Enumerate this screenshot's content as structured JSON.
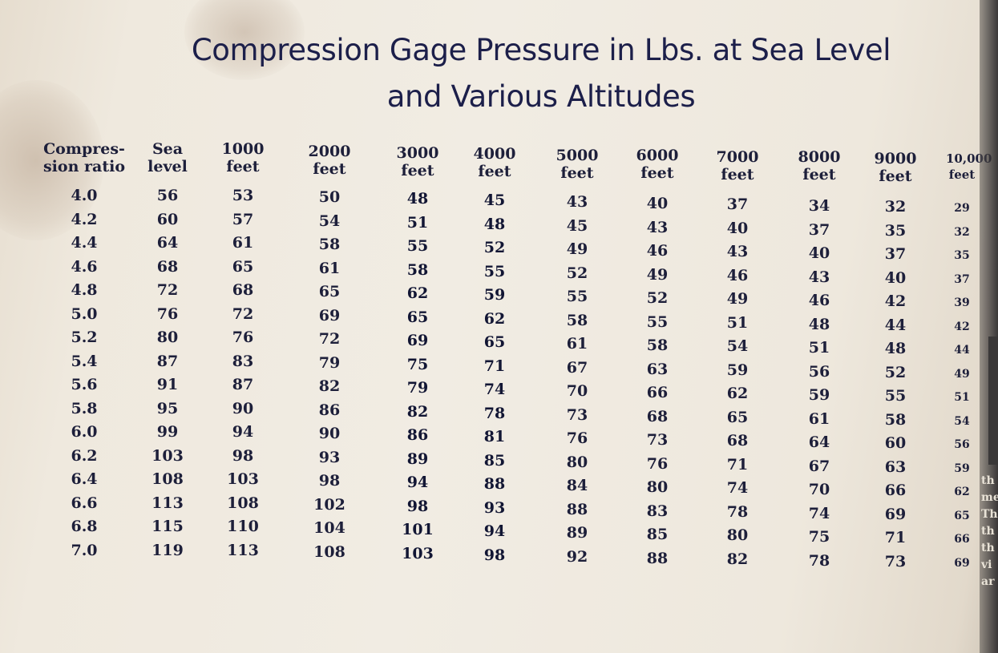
{
  "title": {
    "line1": "Compression Gage Pressure in Lbs. at Sea Level",
    "line2": "and Various Altitudes"
  },
  "table": {
    "headers": [
      [
        "Compres-",
        "sion ratio"
      ],
      [
        "Sea",
        "level"
      ],
      [
        "1000",
        "feet"
      ],
      [
        "2000",
        "feet"
      ],
      [
        "3000",
        "feet"
      ],
      [
        "4000",
        "feet"
      ],
      [
        "5000",
        "feet"
      ],
      [
        "6000",
        "feet"
      ],
      [
        "7000",
        "feet"
      ],
      [
        "8000",
        "feet"
      ],
      [
        "9000",
        "feet"
      ],
      [
        "10,000",
        "feet"
      ]
    ],
    "rows": [
      [
        "4.0",
        "56",
        "53",
        "50",
        "48",
        "45",
        "43",
        "40",
        "37",
        "34",
        "32",
        "29"
      ],
      [
        "4.2",
        "60",
        "57",
        "54",
        "51",
        "48",
        "45",
        "43",
        "40",
        "37",
        "35",
        "32"
      ],
      [
        "4.4",
        "64",
        "61",
        "58",
        "55",
        "52",
        "49",
        "46",
        "43",
        "40",
        "37",
        "35"
      ],
      [
        "4.6",
        "68",
        "65",
        "61",
        "58",
        "55",
        "52",
        "49",
        "46",
        "43",
        "40",
        "37"
      ],
      [
        "4.8",
        "72",
        "68",
        "65",
        "62",
        "59",
        "55",
        "52",
        "49",
        "46",
        "42",
        "39"
      ],
      [
        "5.0",
        "76",
        "72",
        "69",
        "65",
        "62",
        "58",
        "55",
        "51",
        "48",
        "44",
        "42"
      ],
      [
        "5.2",
        "80",
        "76",
        "72",
        "69",
        "65",
        "61",
        "58",
        "54",
        "51",
        "48",
        "44"
      ],
      [
        "5.4",
        "87",
        "83",
        "79",
        "75",
        "71",
        "67",
        "63",
        "59",
        "56",
        "52",
        "49"
      ],
      [
        "5.6",
        "91",
        "87",
        "82",
        "79",
        "74",
        "70",
        "66",
        "62",
        "59",
        "55",
        "51"
      ],
      [
        "5.8",
        "95",
        "90",
        "86",
        "82",
        "78",
        "73",
        "68",
        "65",
        "61",
        "58",
        "54"
      ],
      [
        "6.0",
        "99",
        "94",
        "90",
        "86",
        "81",
        "76",
        "73",
        "68",
        "64",
        "60",
        "56"
      ],
      [
        "6.2",
        "103",
        "98",
        "93",
        "89",
        "85",
        "80",
        "76",
        "71",
        "67",
        "63",
        "59"
      ],
      [
        "6.4",
        "108",
        "103",
        "98",
        "94",
        "88",
        "84",
        "80",
        "74",
        "70",
        "66",
        "62"
      ],
      [
        "6.6",
        "113",
        "108",
        "102",
        "98",
        "93",
        "88",
        "83",
        "78",
        "74",
        "69",
        "65"
      ],
      [
        "6.8",
        "115",
        "110",
        "104",
        "101",
        "94",
        "89",
        "85",
        "80",
        "75",
        "71",
        "66"
      ],
      [
        "7.0",
        "119",
        "113",
        "108",
        "103",
        "98",
        "92",
        "88",
        "82",
        "78",
        "73",
        "69"
      ]
    ]
  },
  "right_edge_fragments": [
    "th",
    "me",
    "Th",
    "th",
    "th",
    "vi",
    "ar"
  ]
}
